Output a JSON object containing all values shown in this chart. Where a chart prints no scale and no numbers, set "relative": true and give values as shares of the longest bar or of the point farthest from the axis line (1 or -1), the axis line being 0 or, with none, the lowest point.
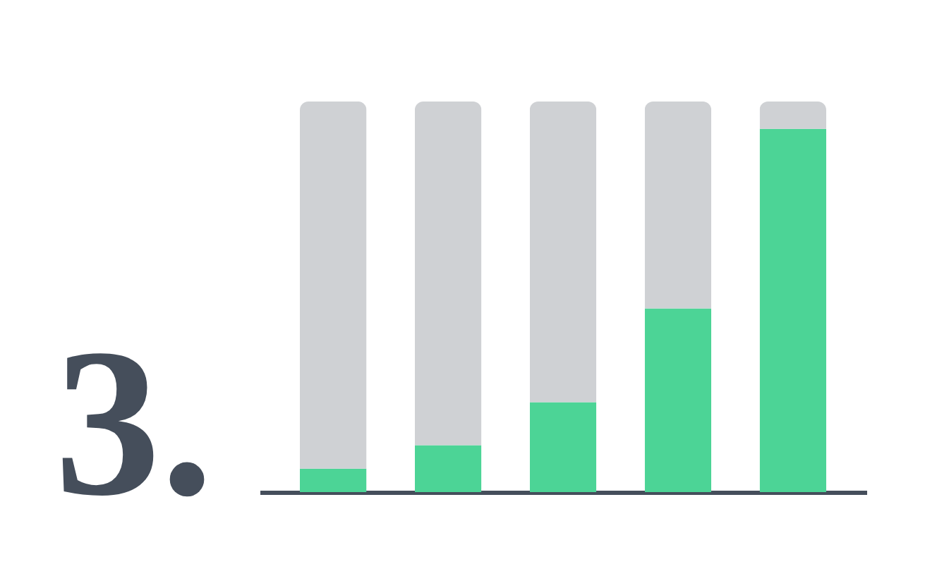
{
  "chart_data": {
    "type": "bar",
    "relative": true,
    "stacked": true,
    "categories": [
      null,
      null,
      null,
      null,
      null
    ],
    "series": [
      {
        "color": "#4cd496",
        "values": [
          0.06,
          0.12,
          0.23,
          0.47,
          0.93
        ]
      },
      {
        "color": "#cfd1d4",
        "values": [
          0.94,
          0.88,
          0.77,
          0.53,
          0.07
        ]
      }
    ],
    "annotations": [
      "3."
    ]
  }
}
